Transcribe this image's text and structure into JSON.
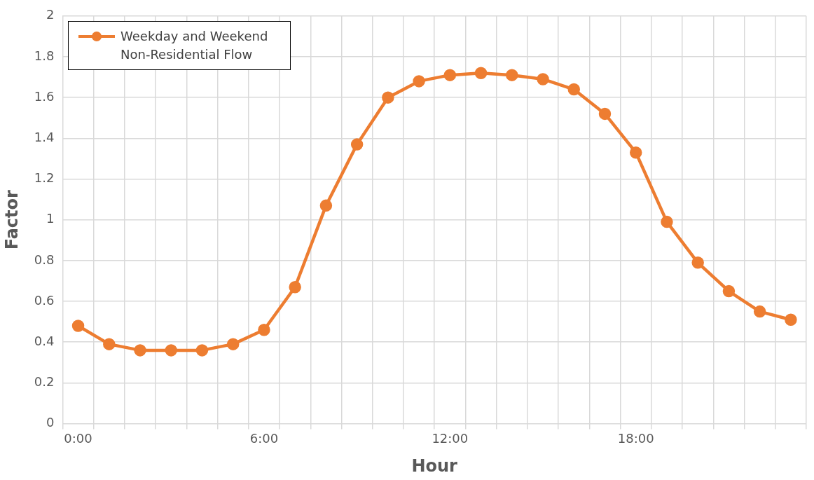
{
  "chart_data": {
    "type": "line",
    "xlabel": "Hour",
    "ylabel": "Factor",
    "categories": [
      "0:00",
      null,
      null,
      null,
      null,
      null,
      "6:00",
      null,
      null,
      null,
      null,
      null,
      "12:00",
      null,
      null,
      null,
      null,
      null,
      "18:00",
      null,
      null,
      null,
      null,
      null
    ],
    "series": [
      {
        "name": "Weekday and Weekend Non-Residential Flow",
        "color": "#ed7d31",
        "values": [
          0.48,
          0.39,
          0.36,
          0.36,
          0.36,
          0.39,
          0.46,
          0.67,
          1.07,
          1.37,
          1.6,
          1.68,
          1.71,
          1.72,
          1.71,
          1.69,
          1.64,
          1.52,
          1.33,
          0.99,
          0.79,
          0.65,
          0.55,
          0.51
        ]
      }
    ],
    "ylim": [
      0,
      2
    ],
    "yticks": [
      0,
      0.2,
      0.4,
      0.6,
      0.8,
      1,
      1.2,
      1.4,
      1.6,
      1.8,
      2
    ],
    "grid": true,
    "legend": "top left",
    "marker": "circle",
    "line_style": "solid"
  }
}
